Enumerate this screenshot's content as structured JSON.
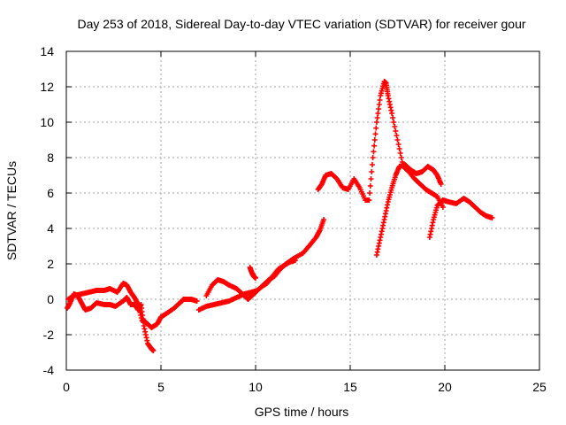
{
  "chart_data": {
    "type": "scatter",
    "title": "Day 253 of 2018, Sidereal Day-to-day VTEC variation (SDTVAR) for receiver gour",
    "xlabel": "GPS time / hours",
    "ylabel": "SDTVAR / TECUs",
    "xlim": [
      0,
      25
    ],
    "ylim": [
      -4,
      14
    ],
    "xticks": [
      0,
      5,
      10,
      15,
      20,
      25
    ],
    "yticks": [
      -4,
      -2,
      0,
      2,
      4,
      6,
      8,
      10,
      12,
      14
    ],
    "xtick_labels": [
      "0",
      "5",
      "10",
      "15",
      "20",
      "25"
    ],
    "ytick_labels": [
      "-4",
      "-2",
      "0",
      "2",
      "4",
      "6",
      "8",
      "10",
      "12",
      "14"
    ],
    "grid": true,
    "marker": "+",
    "color": "#ff0000",
    "series": [
      {
        "x": [
          0.05,
          0.2,
          0.4,
          0.6,
          0.8,
          1.0,
          1.3,
          1.6,
          2.0,
          2.3,
          2.6,
          3.0,
          3.2,
          3.4,
          3.6,
          3.8,
          3.95,
          4.1,
          4.3,
          4.5,
          4.6
        ],
        "values": [
          -0.5,
          -0.2,
          0.3,
          0.2,
          -0.2,
          -0.6,
          -0.5,
          -0.2,
          -0.3,
          -0.3,
          -0.4,
          -0.1,
          0.1,
          -0.3,
          -0.3,
          -0.6,
          -0.3,
          -1.5,
          -2.5,
          -2.8,
          -2.9
        ]
      },
      {
        "x": [
          0.1,
          0.4,
          0.8,
          1.2,
          1.6,
          2.0,
          2.3,
          2.7,
          3.0,
          3.2,
          3.4,
          3.6,
          3.8,
          4.0,
          4.2,
          4.5,
          4.8,
          5.0,
          5.3,
          5.7,
          6.0,
          6.2,
          6.6,
          6.9
        ],
        "values": [
          0.0,
          0.2,
          0.3,
          0.4,
          0.5,
          0.5,
          0.6,
          0.4,
          0.9,
          0.8,
          0.4,
          0.1,
          -0.3,
          -1.2,
          -1.3,
          -1.6,
          -1.4,
          -1.0,
          -0.8,
          -0.5,
          -0.2,
          0.0,
          0.0,
          -0.1
        ]
      },
      {
        "x": [
          7.0,
          7.4,
          7.8,
          8.2,
          8.6,
          9.0,
          9.4,
          9.8,
          10.1,
          10.4,
          10.7,
          11.0,
          11.3,
          11.6,
          12.0,
          12.5,
          12.9,
          13.2,
          13.4,
          13.6
        ],
        "values": [
          -0.6,
          -0.4,
          -0.3,
          -0.2,
          -0.1,
          0.1,
          0.3,
          0.4,
          0.5,
          0.8,
          1.1,
          1.3,
          1.7,
          2.0,
          2.3,
          2.6,
          3.1,
          3.5,
          3.9,
          4.5
        ]
      },
      {
        "x": [
          7.4,
          7.7,
          8.0,
          8.3,
          8.6,
          9.0,
          9.3,
          9.6,
          9.8,
          10.0,
          10.3,
          10.6,
          10.9,
          11.2,
          11.5,
          11.8,
          12.1
        ],
        "values": [
          0.2,
          0.8,
          1.1,
          1.0,
          0.8,
          0.6,
          0.3,
          0.0,
          0.2,
          0.4,
          0.7,
          0.9,
          1.3,
          1.7,
          1.9,
          2.1,
          2.2
        ]
      },
      {
        "x": [
          9.7,
          9.8,
          9.9,
          10.0
        ],
        "values": [
          1.8,
          1.5,
          1.3,
          1.2
        ]
      },
      {
        "x": [
          13.3,
          13.5,
          13.7,
          14.0,
          14.3,
          14.6,
          14.9,
          15.2,
          15.5,
          15.8,
          16.0,
          16.2,
          16.4,
          16.6,
          16.8,
          16.9,
          17.0,
          17.2,
          17.5,
          17.8,
          18.1,
          18.4,
          18.7,
          19.0,
          19.3,
          19.6,
          19.9
        ],
        "values": [
          6.2,
          6.5,
          7.0,
          7.1,
          6.8,
          6.3,
          6.2,
          6.8,
          6.3,
          5.6,
          5.6,
          8.0,
          10.0,
          11.5,
          12.3,
          12.2,
          11.5,
          10.5,
          9.0,
          7.5,
          7.2,
          6.8,
          6.5,
          6.2,
          6.0,
          5.8,
          5.2
        ]
      },
      {
        "x": [
          16.4,
          16.6,
          16.8,
          17.0,
          17.2,
          17.4,
          17.6,
          17.9,
          18.2,
          18.5,
          18.8,
          19.1,
          19.4,
          19.6,
          19.8
        ],
        "values": [
          2.5,
          3.5,
          4.5,
          5.5,
          6.3,
          7.0,
          7.5,
          7.6,
          7.3,
          7.1,
          7.2,
          7.5,
          7.3,
          7.0,
          6.5
        ]
      },
      {
        "x": [
          19.2,
          19.4,
          19.6,
          19.9,
          20.2,
          20.6,
          21.0,
          21.3,
          21.6,
          21.9,
          22.2,
          22.5
        ],
        "values": [
          3.5,
          4.5,
          5.3,
          5.6,
          5.5,
          5.4,
          5.7,
          5.5,
          5.2,
          4.9,
          4.7,
          4.6
        ]
      }
    ]
  }
}
